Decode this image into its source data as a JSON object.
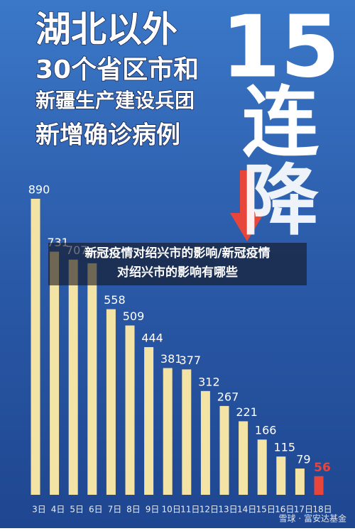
{
  "chart_data": {
    "type": "bar",
    "title_lines": [
      "湖北以外",
      "30个省区市和",
      "新疆生产建设兵团",
      "新增确诊病例"
    ],
    "side_lines": [
      "15",
      "连",
      "降"
    ],
    "categories": [
      "3日",
      "4日",
      "5日",
      "6日",
      "7日",
      "8日",
      "9日",
      "10日",
      "11日",
      "12日",
      "13日",
      "14日",
      "15日",
      "16日",
      "17日",
      "18日"
    ],
    "values": [
      890,
      731,
      707,
      696,
      558,
      509,
      444,
      381,
      377,
      312,
      267,
      221,
      166,
      115,
      79,
      56
    ],
    "colors": [
      "#f3e3a4",
      "#f3e3a4",
      "#f3e3a4",
      "#f3e3a4",
      "#f3e3a4",
      "#f3e3a4",
      "#f3e3a4",
      "#f3e3a4",
      "#f3e3a4",
      "#f3e3a4",
      "#f3e3a4",
      "#f3e3a4",
      "#f3e3a4",
      "#f3e3a4",
      "#f3e3a4",
      "#e8463a"
    ]
  },
  "banner": {
    "lines": [
      "新冠疫情对绍兴市的影响/新冠疫情",
      "对绍兴市的影响有哪些"
    ]
  },
  "watermark": "雪球 · 富安达基金"
}
